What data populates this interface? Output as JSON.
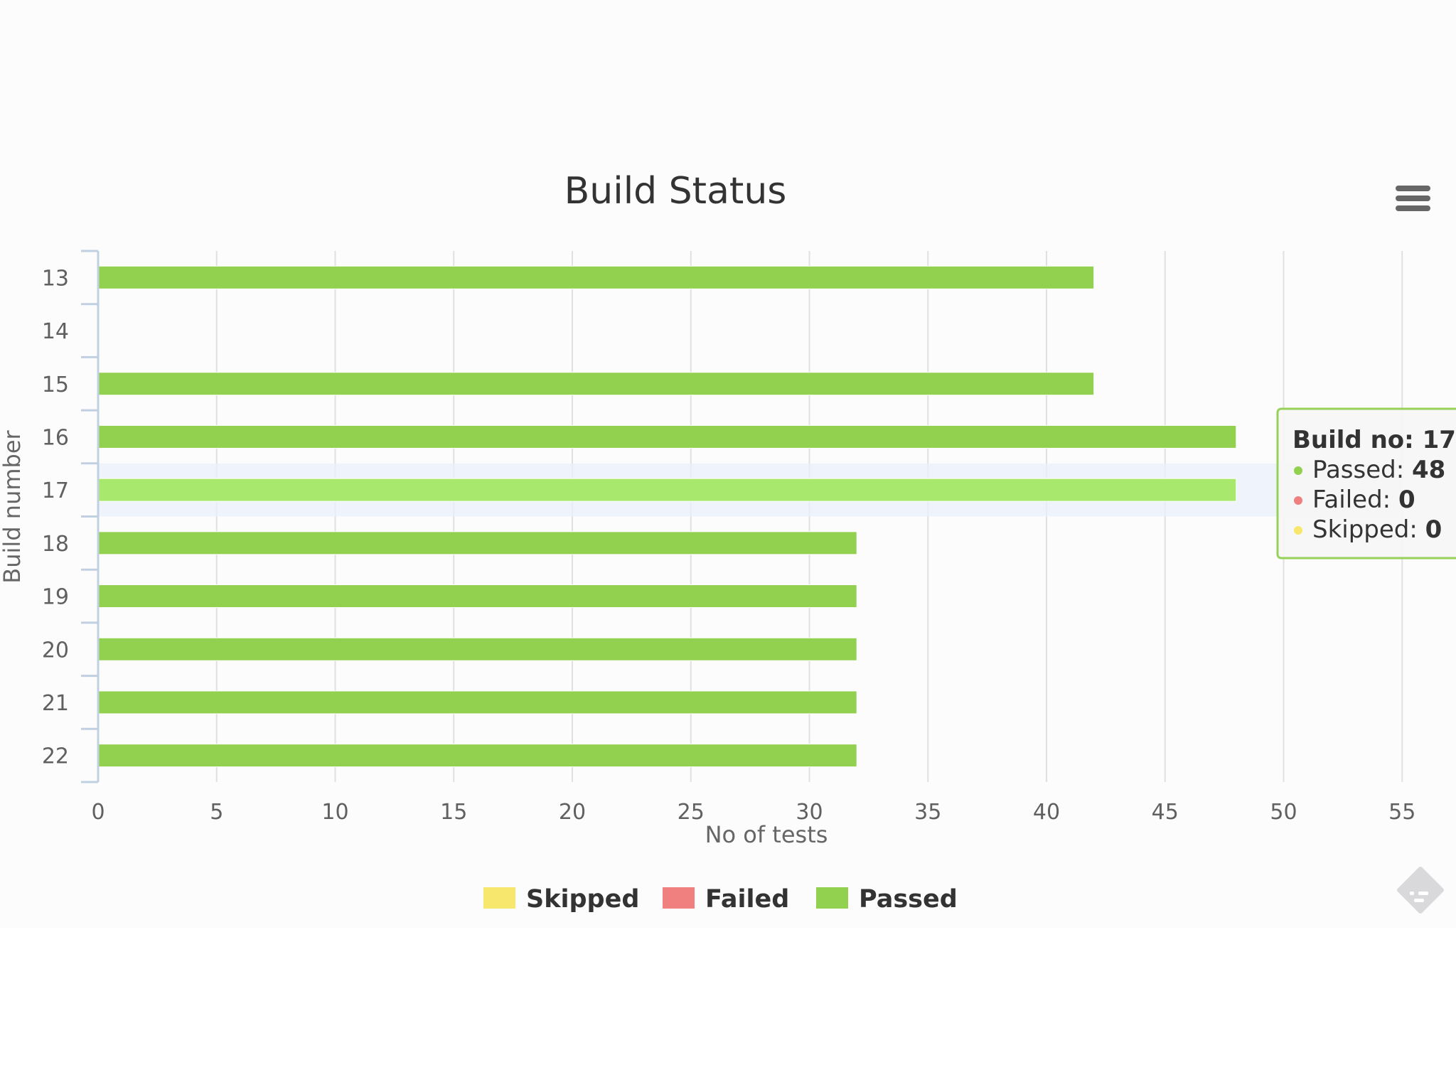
{
  "chart_data": {
    "type": "bar",
    "orientation": "horizontal",
    "stacked": true,
    "title": "Build Status",
    "xlabel": "No of tests",
    "ylabel": "Build number",
    "categories": [
      "13",
      "14",
      "15",
      "16",
      "17",
      "18",
      "19",
      "20",
      "21",
      "22"
    ],
    "series": [
      {
        "name": "Skipped",
        "color": "#f7e76c",
        "values": [
          0,
          0,
          0,
          0,
          0,
          0,
          0,
          0,
          0,
          0
        ]
      },
      {
        "name": "Failed",
        "color": "#f07f7f",
        "values": [
          0,
          0,
          0,
          0,
          0,
          0,
          0,
          0,
          0,
          0
        ]
      },
      {
        "name": "Passed",
        "color": "#92d050",
        "values": [
          42,
          0,
          42,
          48,
          48,
          32,
          32,
          32,
          32,
          32
        ]
      }
    ],
    "xlim": [
      0,
      55
    ],
    "xticks": [
      0,
      5,
      10,
      15,
      20,
      25,
      30,
      35,
      40,
      45,
      50,
      55
    ],
    "grid": true,
    "legend_position": "bottom-center",
    "highlighted_category": "17",
    "highlight_color": "#a8e86d",
    "tooltip": {
      "header_label": "Build no:",
      "header_value": "17",
      "rows": [
        {
          "label": "Passed:",
          "value": "48",
          "color": "#92d050"
        },
        {
          "label": "Failed:",
          "value": "0",
          "color": "#f07f7f"
        },
        {
          "label": "Skipped:",
          "value": "0",
          "color": "#f7e76c"
        }
      ]
    }
  },
  "toolbar": {
    "menu_icon": "hamburger-menu-icon",
    "export_icon": "feedly-export-icon"
  }
}
